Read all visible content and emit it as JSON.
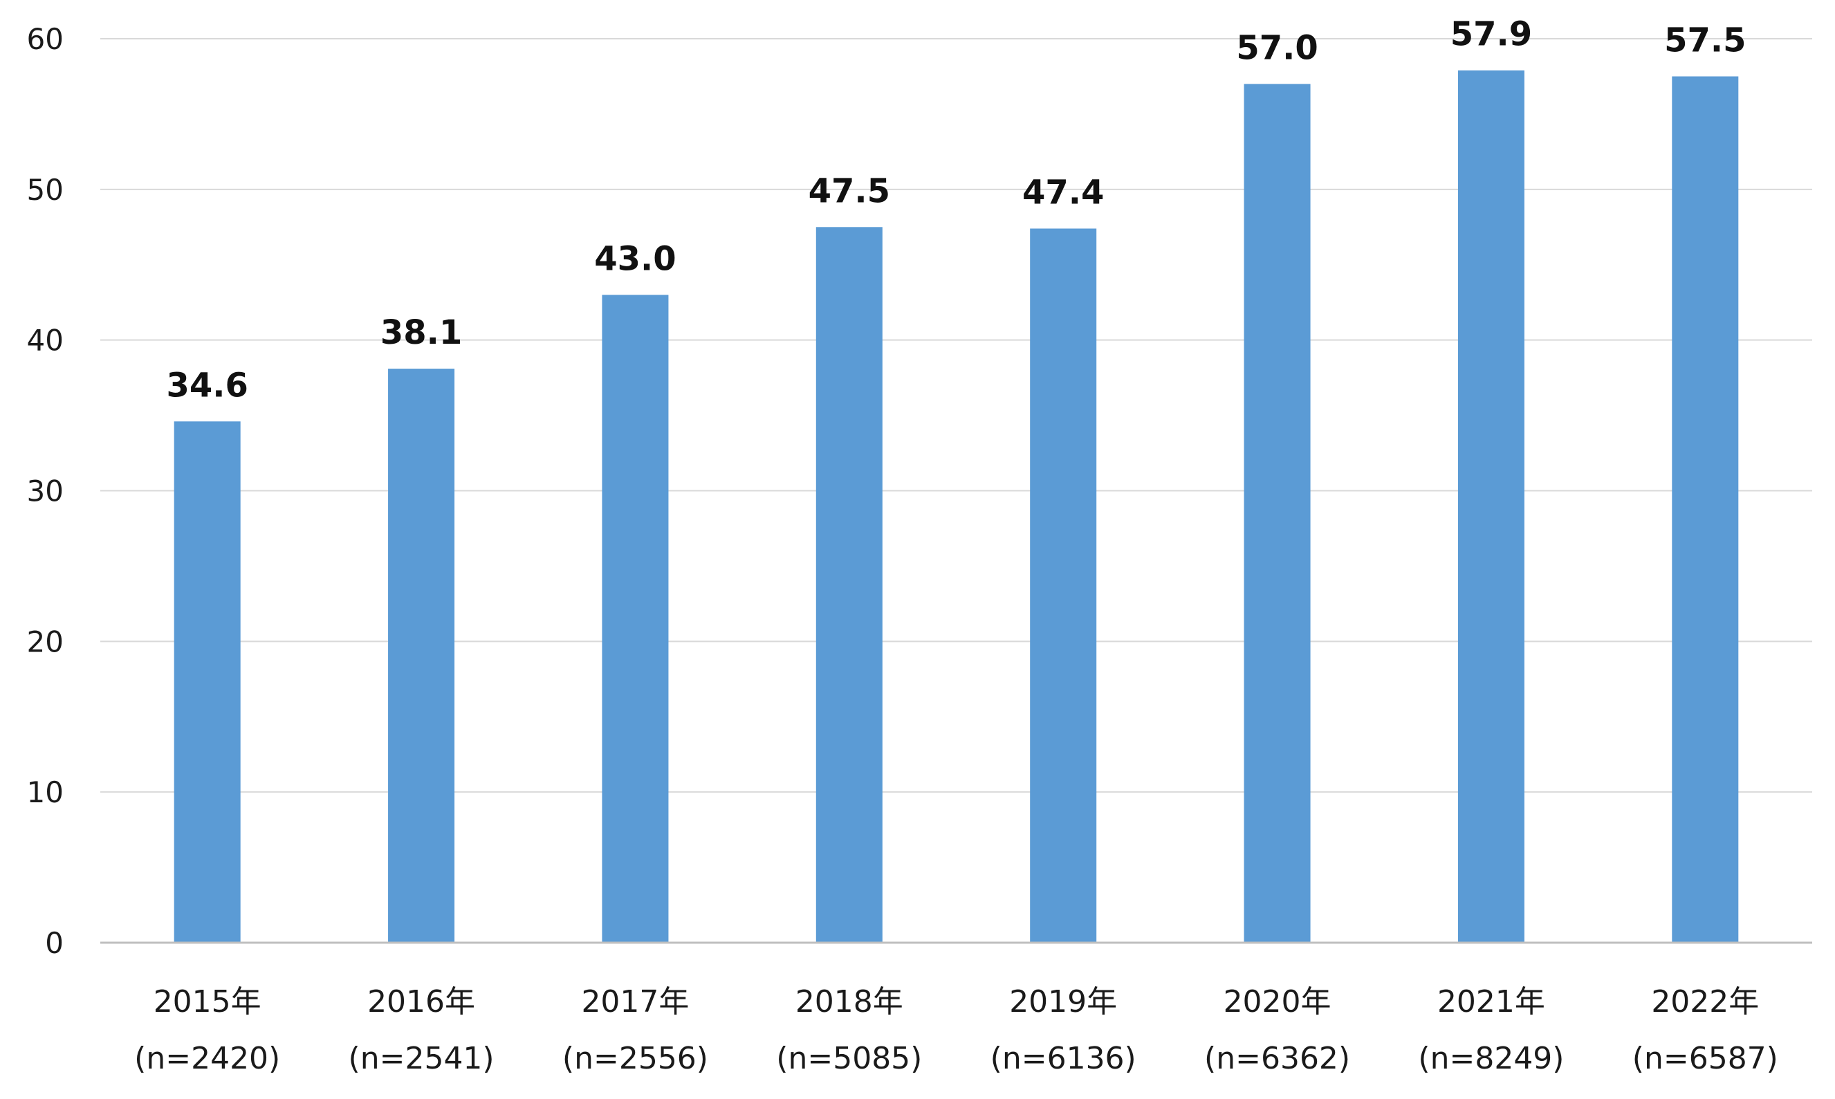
{
  "chart_data": {
    "type": "bar",
    "categories": [
      [
        "2015年",
        "(n=2420)"
      ],
      [
        "2016年",
        "(n=2541)"
      ],
      [
        "2017年",
        "(n=2556)"
      ],
      [
        "2018年",
        "(n=5085)"
      ],
      [
        "2019年",
        "(n=6136)"
      ],
      [
        "2020年",
        "(n=6362)"
      ],
      [
        "2021年",
        "(n=8249)"
      ],
      [
        "2022年",
        "(n=6587)"
      ]
    ],
    "values": [
      34.6,
      38.1,
      43.0,
      47.5,
      47.4,
      57.0,
      57.9,
      57.5
    ],
    "data_labels": [
      "34.6",
      "38.1",
      "43.0",
      "47.5",
      "47.4",
      "57.0",
      "57.9",
      "57.5"
    ],
    "yticks": [
      0,
      10,
      20,
      30,
      40,
      50,
      60
    ],
    "ylim": [
      0,
      60
    ],
    "grid": true,
    "legend": false,
    "bar_color": "#5b9bd5"
  }
}
